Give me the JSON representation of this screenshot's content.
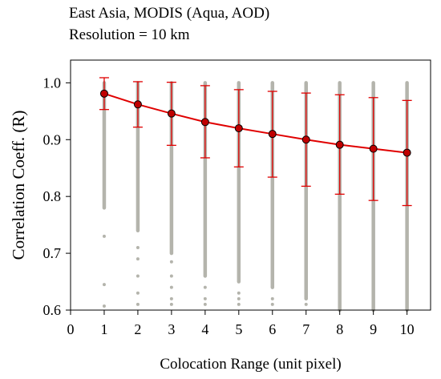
{
  "chart_data": {
    "type": "line",
    "title_lines": [
      "East Asia, MODIS (Aqua, AOD)",
      "Resolution = 10 km"
    ],
    "xlabel": "Colocation Range (unit pixel)",
    "ylabel": "Correlation Coeff. (R)",
    "xlim": [
      0,
      10.7
    ],
    "ylim": [
      0.6,
      1.04
    ],
    "x_ticks": [
      0,
      1,
      2,
      3,
      4,
      5,
      6,
      7,
      8,
      9,
      10
    ],
    "y_ticks": [
      0.6,
      0.7,
      0.8,
      0.9,
      1.0
    ],
    "x_tick_labels": [
      "0",
      "1",
      "2",
      "3",
      "4",
      "5",
      "6",
      "7",
      "8",
      "9",
      "10"
    ],
    "y_tick_labels": [
      "0.6",
      "0.7",
      "0.8",
      "0.9",
      "1.0"
    ],
    "grid": false,
    "colors": {
      "mean_line": "#e00000",
      "marker_fill": "#c00000",
      "scatter": "#b4b4ac"
    },
    "series": [
      {
        "x": [
          1,
          2,
          3,
          4,
          5,
          6,
          7,
          8,
          9,
          10
        ],
        "mean": [
          0.981,
          0.962,
          0.946,
          0.931,
          0.92,
          0.91,
          0.9,
          0.891,
          0.884,
          0.877
        ],
        "upper": [
          1.009,
          1.002,
          1.001,
          0.995,
          0.988,
          0.985,
          0.982,
          0.979,
          0.974,
          0.969
        ],
        "lower": [
          0.953,
          0.922,
          0.89,
          0.868,
          0.852,
          0.834,
          0.818,
          0.804,
          0.793,
          0.784
        ]
      }
    ],
    "scatter_columns": [
      {
        "x": 1,
        "dense_min": 0.78,
        "sparse": [
          0.73,
          0.645,
          0.607
        ]
      },
      {
        "x": 2,
        "dense_min": 0.74,
        "sparse": [
          0.71,
          0.69,
          0.66,
          0.63,
          0.61
        ]
      },
      {
        "x": 3,
        "dense_min": 0.7,
        "sparse": [
          0.685,
          0.66,
          0.64,
          0.62,
          0.61
        ]
      },
      {
        "x": 4,
        "dense_min": 0.66,
        "sparse": [
          0.64,
          0.62,
          0.61
        ]
      },
      {
        "x": 5,
        "dense_min": 0.65,
        "sparse": [
          0.63,
          0.62,
          0.61
        ]
      },
      {
        "x": 6,
        "dense_min": 0.64,
        "sparse": [
          0.62,
          0.61
        ]
      },
      {
        "x": 7,
        "dense_min": 0.62,
        "sparse": [
          0.61
        ]
      },
      {
        "x": 8,
        "dense_min": 0.6,
        "sparse": []
      },
      {
        "x": 9,
        "dense_min": 0.6,
        "sparse": []
      },
      {
        "x": 10,
        "dense_min": 0.6,
        "sparse": []
      }
    ]
  }
}
